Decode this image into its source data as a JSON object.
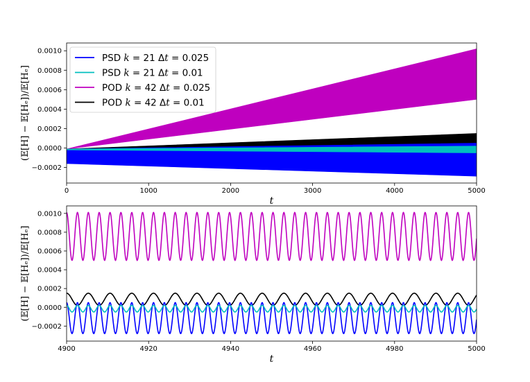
{
  "chart_data": [
    {
      "type": "area",
      "xlabel": "t",
      "ylabel": "(𝔼[H] − 𝔼[Hₑ])/𝔼[Hₑ]",
      "xlim": [
        0,
        5000
      ],
      "ylim": [
        -0.00036,
        0.00108
      ],
      "xticks": [
        0,
        1000,
        2000,
        3000,
        4000,
        5000
      ],
      "xtick_labels": [
        "0",
        "1000",
        "2000",
        "3000",
        "4000",
        "5000"
      ],
      "yticks": [
        -0.0002,
        0,
        0.0002,
        0.0004,
        0.0006,
        0.0008,
        0.001
      ],
      "ytick_labels": [
        "−0.0002",
        "0.0000",
        "0.0002",
        "0.0004",
        "0.0006",
        "0.0008",
        "0.0010"
      ],
      "grid": false,
      "legend_position": "upper-left",
      "series": [
        {
          "name": "PSD k = 21 Δt = 0.025",
          "color": "#0000ff",
          "x": [
            0,
            5000
          ],
          "upper": [
            -1e-05,
            5e-05
          ],
          "lower": [
            -0.00016,
            -0.00029
          ]
        },
        {
          "name": "PSD k = 21 Δt = 0.01",
          "color": "#00bfbf",
          "x": [
            0,
            5000
          ],
          "upper": [
            -1e-05,
            2e-05
          ],
          "lower": [
            -2e-05,
            -5e-05
          ]
        },
        {
          "name": "POD k = 42 Δt = 0.025",
          "color": "#bf00bf",
          "x": [
            0,
            5000
          ],
          "upper": [
            -1e-05,
            0.00102
          ],
          "lower": [
            -1e-05,
            0.0005
          ]
        },
        {
          "name": "POD k = 42 Δt = 0.01",
          "color": "#000000",
          "x": [
            0,
            5000
          ],
          "upper": [
            -1e-05,
            0.00015
          ],
          "lower": [
            -2e-05,
            2e-05
          ]
        }
      ]
    },
    {
      "type": "line",
      "xlabel": "t",
      "ylabel": "(𝔼[H] − 𝔼[Hₑ])/𝔼[Hₑ]",
      "xlim": [
        4900,
        5000
      ],
      "ylim": [
        -0.00036,
        0.00108
      ],
      "xticks": [
        4900,
        4920,
        4940,
        4960,
        4980,
        5000
      ],
      "xtick_labels": [
        "4900",
        "4920",
        "4940",
        "4960",
        "4980",
        "5000"
      ],
      "yticks": [
        -0.0002,
        0,
        0.0002,
        0.0004,
        0.0006,
        0.0008,
        0.001
      ],
      "ytick_labels": [
        "−0.0002",
        "0.0000",
        "0.0002",
        "0.0004",
        "0.0006",
        "0.0008",
        "0.0010"
      ],
      "grid": false,
      "series": [
        {
          "name": "PSD k = 21 Δt = 0.025",
          "color": "#0000ff",
          "min": -0.00028,
          "max": 5e-05,
          "period": 2.65
        },
        {
          "name": "PSD k = 21 Δt = 0.01",
          "color": "#00bfbf",
          "min": -5e-05,
          "max": 2e-05,
          "period": 2.65
        },
        {
          "name": "POD k = 42 Δt = 0.025",
          "color": "#bf00bf",
          "min": 0.0005,
          "max": 0.00101,
          "period": 2.65
        },
        {
          "name": "POD k = 42 Δt = 0.01",
          "color": "#000000",
          "min": 2e-05,
          "max": 0.00015,
          "period": 5.3
        }
      ]
    }
  ],
  "legend": {
    "entries": [
      {
        "prefix": "PSD",
        "k": "21",
        "dt": "0.025",
        "color": "#0000ff"
      },
      {
        "prefix": "PSD",
        "k": "21",
        "dt": "0.01",
        "color": "#00bfbf"
      },
      {
        "prefix": "POD",
        "k": "42",
        "dt": "0.025",
        "color": "#bf00bf"
      },
      {
        "prefix": "POD",
        "k": "42",
        "dt": "0.01",
        "color": "#000000"
      }
    ]
  }
}
